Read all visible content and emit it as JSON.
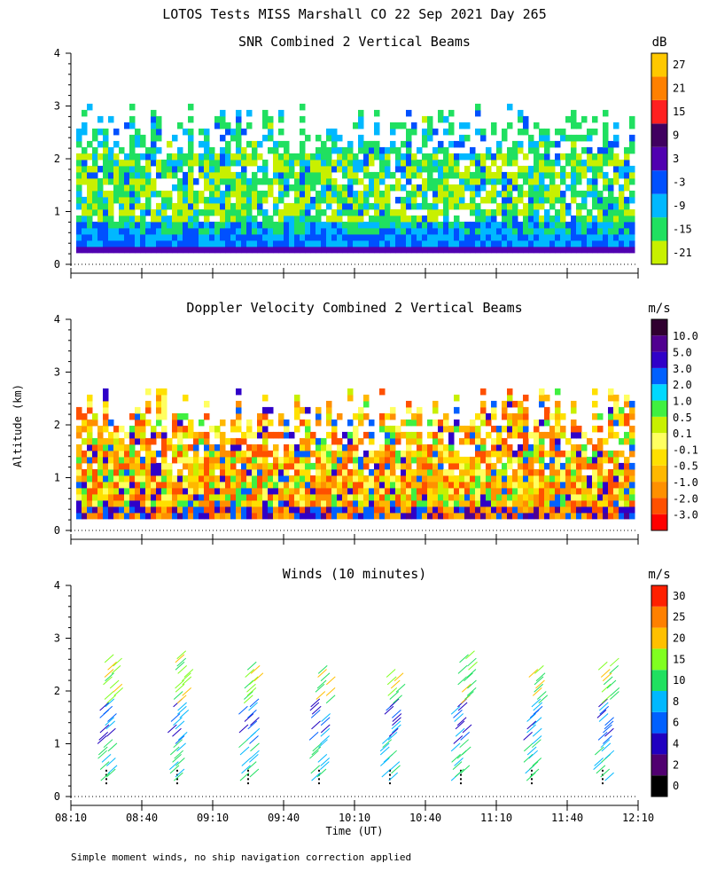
{
  "figure": {
    "title": "LOTOS Tests MISS Marshall CO  22 Sep 2021 Day 265",
    "ylabel": "Altitude (km)",
    "xlabel": "Time (UT)",
    "footnote": "Simple moment winds, no ship navigation correction applied"
  },
  "chart_data": [
    {
      "type": "heatmap",
      "title": "SNR Combined 2 Vertical Beams",
      "units": "dB",
      "x_ticks": [
        "08:10",
        "08:40",
        "09:10",
        "09:40",
        "10:10",
        "10:40",
        "11:10",
        "11:40",
        "12:10"
      ],
      "y_ticks": [
        "0",
        "1",
        "2",
        "3",
        "4"
      ],
      "ylim": [
        0,
        4
      ],
      "colorbar": {
        "levels": [
          "-21",
          "-15",
          "-9",
          "-3",
          "3",
          "9",
          "15",
          "21",
          "27"
        ],
        "colors": [
          "#c8f000",
          "#20e060",
          "#00b8ff",
          "#0050ff",
          "#5000b0",
          "#400060",
          "#ff2020",
          "#ff8000",
          "#ffc800"
        ]
      }
    },
    {
      "type": "heatmap",
      "title": "Doppler Velocity Combined 2 Vertical Beams",
      "units": "m/s",
      "x_ticks": [
        "08:10",
        "08:40",
        "09:10",
        "09:40",
        "10:10",
        "10:40",
        "11:10",
        "11:40",
        "12:10"
      ],
      "y_ticks": [
        "0",
        "1",
        "2",
        "3",
        "4"
      ],
      "ylim": [
        0,
        4
      ],
      "colorbar": {
        "levels": [
          "-3.0",
          "-2.0",
          "-1.0",
          "-0.5",
          "-0.1",
          "0.1",
          "0.5",
          "1.0",
          "2.0",
          "3.0",
          "5.0",
          "10.0"
        ],
        "colors": [
          "#ff0000",
          "#ff5000",
          "#ff9000",
          "#ffb800",
          "#ffe000",
          "#ffff60",
          "#c8f000",
          "#40f040",
          "#00d8ff",
          "#0060ff",
          "#3000c8",
          "#500090",
          "#300030"
        ]
      }
    },
    {
      "type": "scatter",
      "title": "Winds (10 minutes)",
      "units": "m/s",
      "x_ticks": [
        "08:10",
        "08:40",
        "09:10",
        "09:40",
        "10:10",
        "10:40",
        "11:10",
        "11:40",
        "12:10"
      ],
      "y_ticks": [
        "0",
        "1",
        "2",
        "3",
        "4"
      ],
      "ylim": [
        0,
        4
      ],
      "profile_times": [
        "08:25",
        "08:55",
        "09:25",
        "09:55",
        "10:25",
        "10:55",
        "11:25",
        "11:55"
      ],
      "colorbar": {
        "levels": [
          "0",
          "2",
          "4",
          "6",
          "8",
          "10",
          "15",
          "20",
          "25",
          "30"
        ],
        "colors": [
          "#000000",
          "#500070",
          "#2000c0",
          "#0060ff",
          "#00b8ff",
          "#20e060",
          "#80ff20",
          "#ffc000",
          "#ff8000",
          "#ff2000"
        ]
      }
    }
  ]
}
